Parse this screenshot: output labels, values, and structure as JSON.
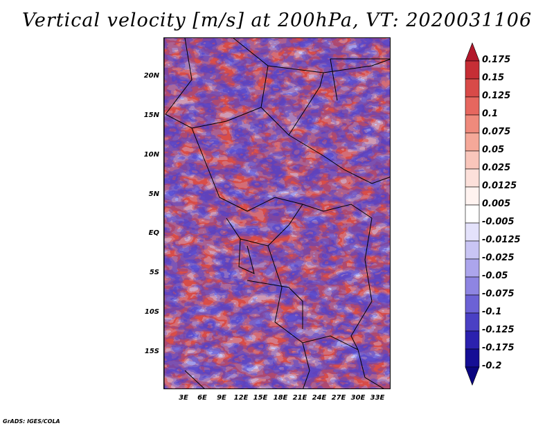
{
  "title": "Vertical velocity [m/s] at 200hPa, VT: 2020031106",
  "y_axis_labels": [
    "20N",
    "15N",
    "10N",
    "5N",
    "EQ",
    "5S",
    "10S",
    "15S"
  ],
  "x_axis_labels": [
    "3E",
    "6E",
    "9E",
    "12E",
    "15E",
    "18E",
    "21E",
    "24E",
    "27E",
    "30E",
    "33E"
  ],
  "colorbar": {
    "labels": [
      "0.175",
      "0.15",
      "0.125",
      "0.1",
      "0.075",
      "0.05",
      "0.025",
      "0.0125",
      "0.005",
      "-0.005",
      "-0.0125",
      "-0.025",
      "-0.05",
      "-0.075",
      "-0.1",
      "-0.125",
      "-0.175",
      "-0.2"
    ],
    "colors": [
      "#b2182b",
      "#c62e35",
      "#d84a48",
      "#e6675f",
      "#ef8a7c",
      "#f5a899",
      "#f9c6bb",
      "#fce0da",
      "#fff3f0",
      "#ffffff",
      "#e4e2fb",
      "#c9c5f4",
      "#aca5ec",
      "#8e85e2",
      "#6c62d5",
      "#4a40c4",
      "#2b21ae",
      "#150e95",
      "#0a0580"
    ]
  },
  "credit": "GrADS: IGES/COLA"
}
